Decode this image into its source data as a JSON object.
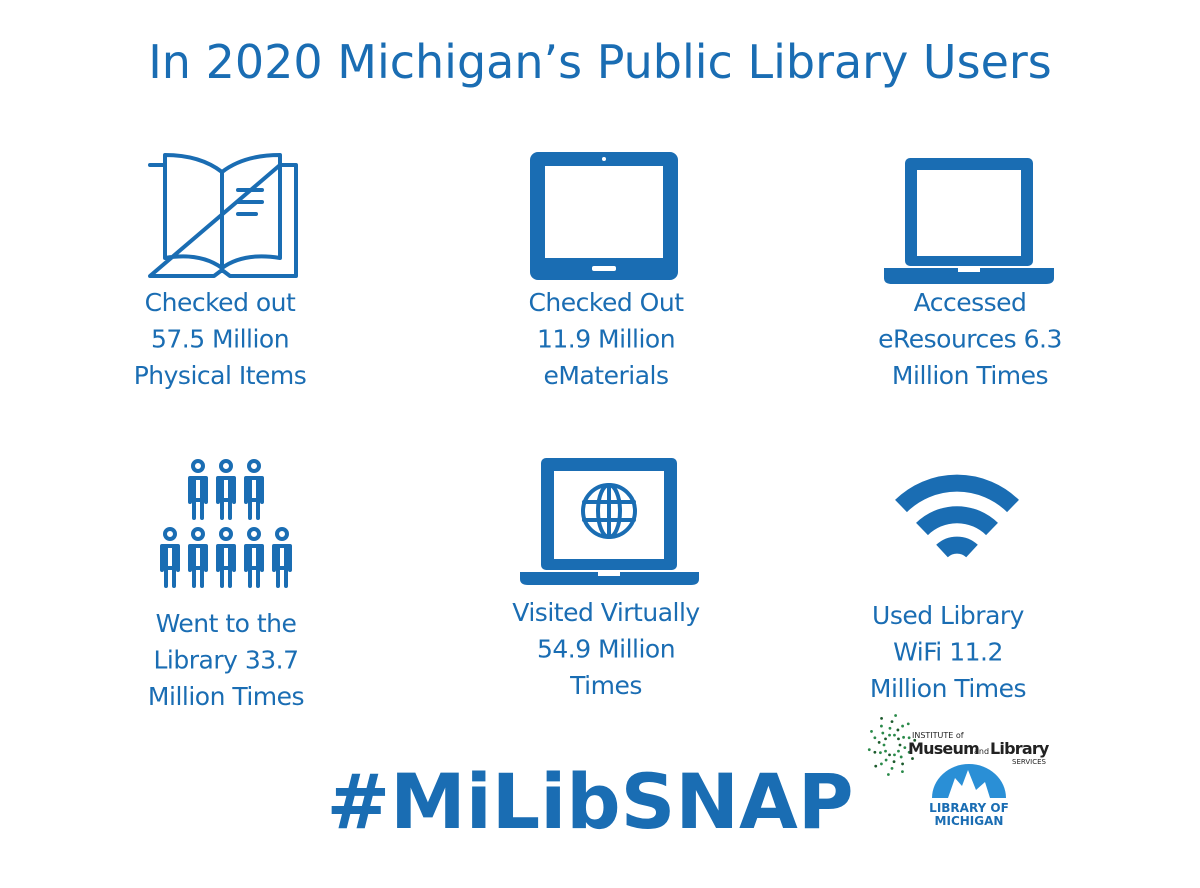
{
  "header": {
    "title": "In 2020 Michigan’s Public Library Users"
  },
  "items": [
    {
      "lines": [
        "Checked out",
        "57.5 Million",
        "Physical Items"
      ]
    },
    {
      "lines": [
        "Checked Out",
        "11.9 Million",
        "eMaterials"
      ]
    },
    {
      "lines": [
        "Accessed",
        "eResources 6.3",
        "Million Times"
      ]
    },
    {
      "lines": [
        "Went to the",
        "Library 33.7",
        "Million Times"
      ]
    },
    {
      "lines": [
        "Visited Virtually",
        "54.9 Million",
        "Times"
      ]
    },
    {
      "lines": [
        "Used Library",
        "WiFi 11.2",
        "Million Times"
      ]
    }
  ],
  "hashtag": "#MiLibSNAP",
  "logos": {
    "imls": {
      "top": "INSTITUTE of",
      "museum": "Museum",
      "and": "and",
      "library": "Library",
      "services": "SERVICES"
    },
    "lom": {
      "line1": "LIBRARY OF",
      "line2": "MICHIGAN"
    }
  }
}
